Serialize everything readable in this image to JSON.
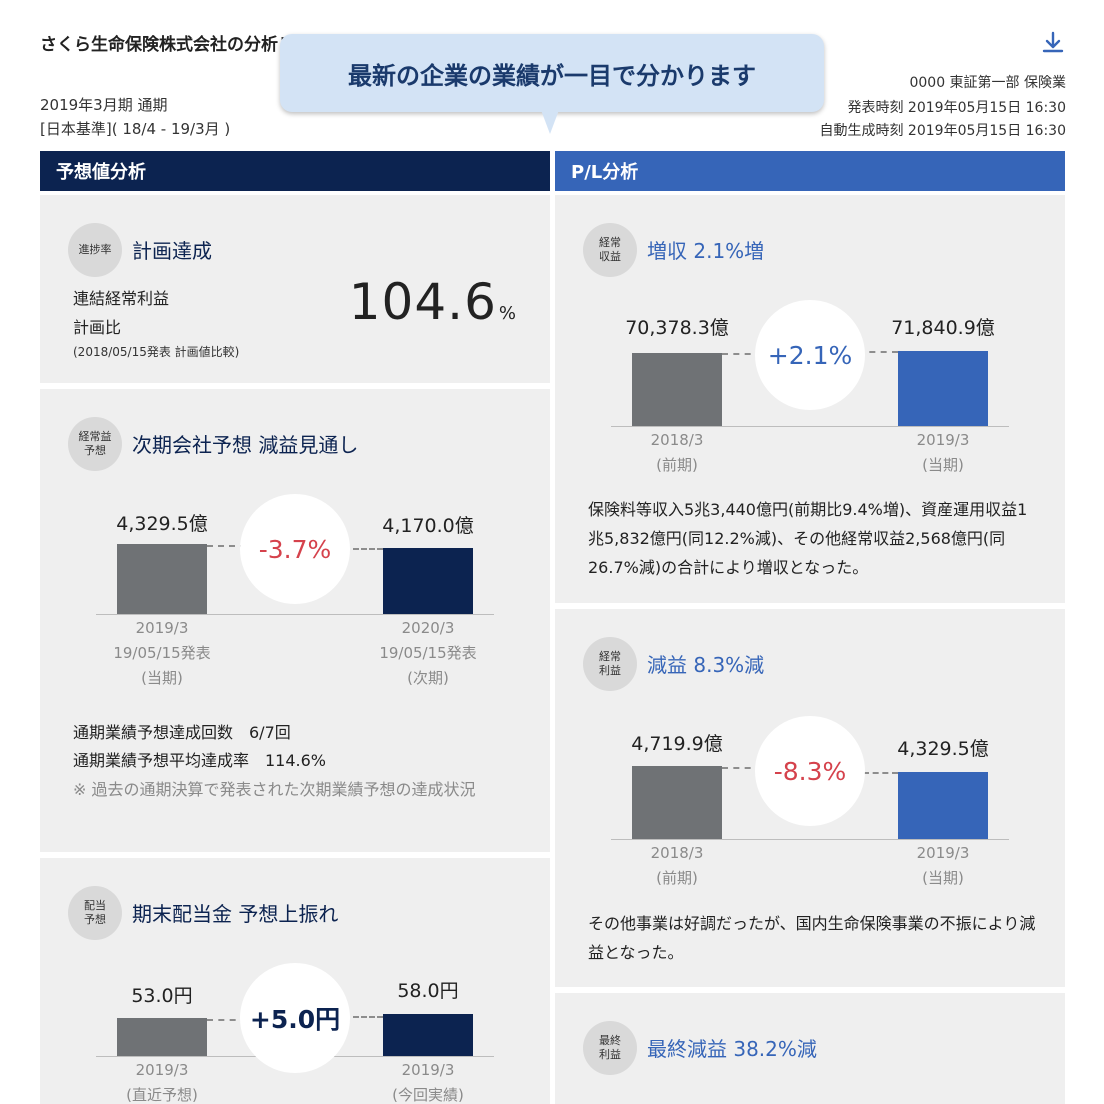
{
  "header": {
    "company_report_title": "さくら生命保険株式会社の分析レポート",
    "period": "2019年3月期 通期",
    "basis": "[日本基準]( 18/4 - 19/3月 )",
    "code_market_sector": "0000 東証第一部 保険業",
    "published_at": "発表時刻 2019年05月15日 16:30",
    "generated_at": "自動生成時刻 2019年05月15日 16:30",
    "download_icon": "download-icon"
  },
  "tooltip": {
    "text": "最新の企業の業績が一目で分かります"
  },
  "columns": {
    "left_title": "予想値分析",
    "right_title": "P/L分析"
  },
  "colors": {
    "navy": "#0c2350",
    "blue": "#3665b8",
    "prev_bar": "#6f7275",
    "negative": "#d5424c",
    "card_bg": "#efefef"
  },
  "forecast_achievement": {
    "badge": "進捗率",
    "title": "計画達成",
    "label_line1": "連結経常利益",
    "label_line2": "計画比",
    "note": "(2018/05/15発表 計画値比較)",
    "value": "104.6",
    "unit": "%"
  },
  "next_forecast": {
    "badge_line1": "経常益",
    "badge_line2": "予想",
    "title": "次期会社予想 減益見通し",
    "prev_value": "4,329.5億",
    "curr_value": "4,170.0億",
    "change": "-3.7%",
    "prev_axis": [
      "2019/3",
      "19/05/15発表",
      "(当期)"
    ],
    "curr_axis": [
      "2020/3",
      "19/05/15発表",
      "(次期)"
    ],
    "stat_count": "通期業績予想達成回数　6/7回",
    "stat_rate": "通期業績予想平均達成率　114.6%",
    "stat_note": "※ 過去の通期決算で発表された次期業績予想の達成状況"
  },
  "dividend": {
    "badge_line1": "配当",
    "badge_line2": "予想",
    "title": "期末配当金 予想上振れ",
    "prev_value": "53.0円",
    "curr_value": "58.0円",
    "change": "+5.0円",
    "prev_axis": [
      "2019/3",
      "(直近予想)"
    ],
    "curr_axis": [
      "2019/3",
      "(今回実績)"
    ]
  },
  "revenue": {
    "badge_line1": "経常",
    "badge_line2": "収益",
    "title": "増収 2.1%増",
    "prev_value": "70,378.3億",
    "curr_value": "71,840.9億",
    "change": "+2.1%",
    "prev_axis": [
      "2018/3",
      "(前期)"
    ],
    "curr_axis": [
      "2019/3",
      "(当期)"
    ],
    "description": "保険料等収入5兆3,440億円(前期比9.4%増)、資産運用収益1兆5,832億円(同12.2%減)、その他経常収益2,568億円(同26.7%減)の合計により増収となった。"
  },
  "ordinary_profit": {
    "badge_line1": "経常",
    "badge_line2": "利益",
    "title": "減益 8.3%減",
    "prev_value": "4,719.9億",
    "curr_value": "4,329.5億",
    "change": "-8.3%",
    "prev_axis": [
      "2018/3",
      "(前期)"
    ],
    "curr_axis": [
      "2019/3",
      "(当期)"
    ],
    "description": "その他事業は好調だったが、国内生命保険事業の不振により減益となった。"
  },
  "net_profit": {
    "badge_line1": "最終",
    "badge_line2": "利益",
    "title": "最終減益 38.2%減"
  }
}
